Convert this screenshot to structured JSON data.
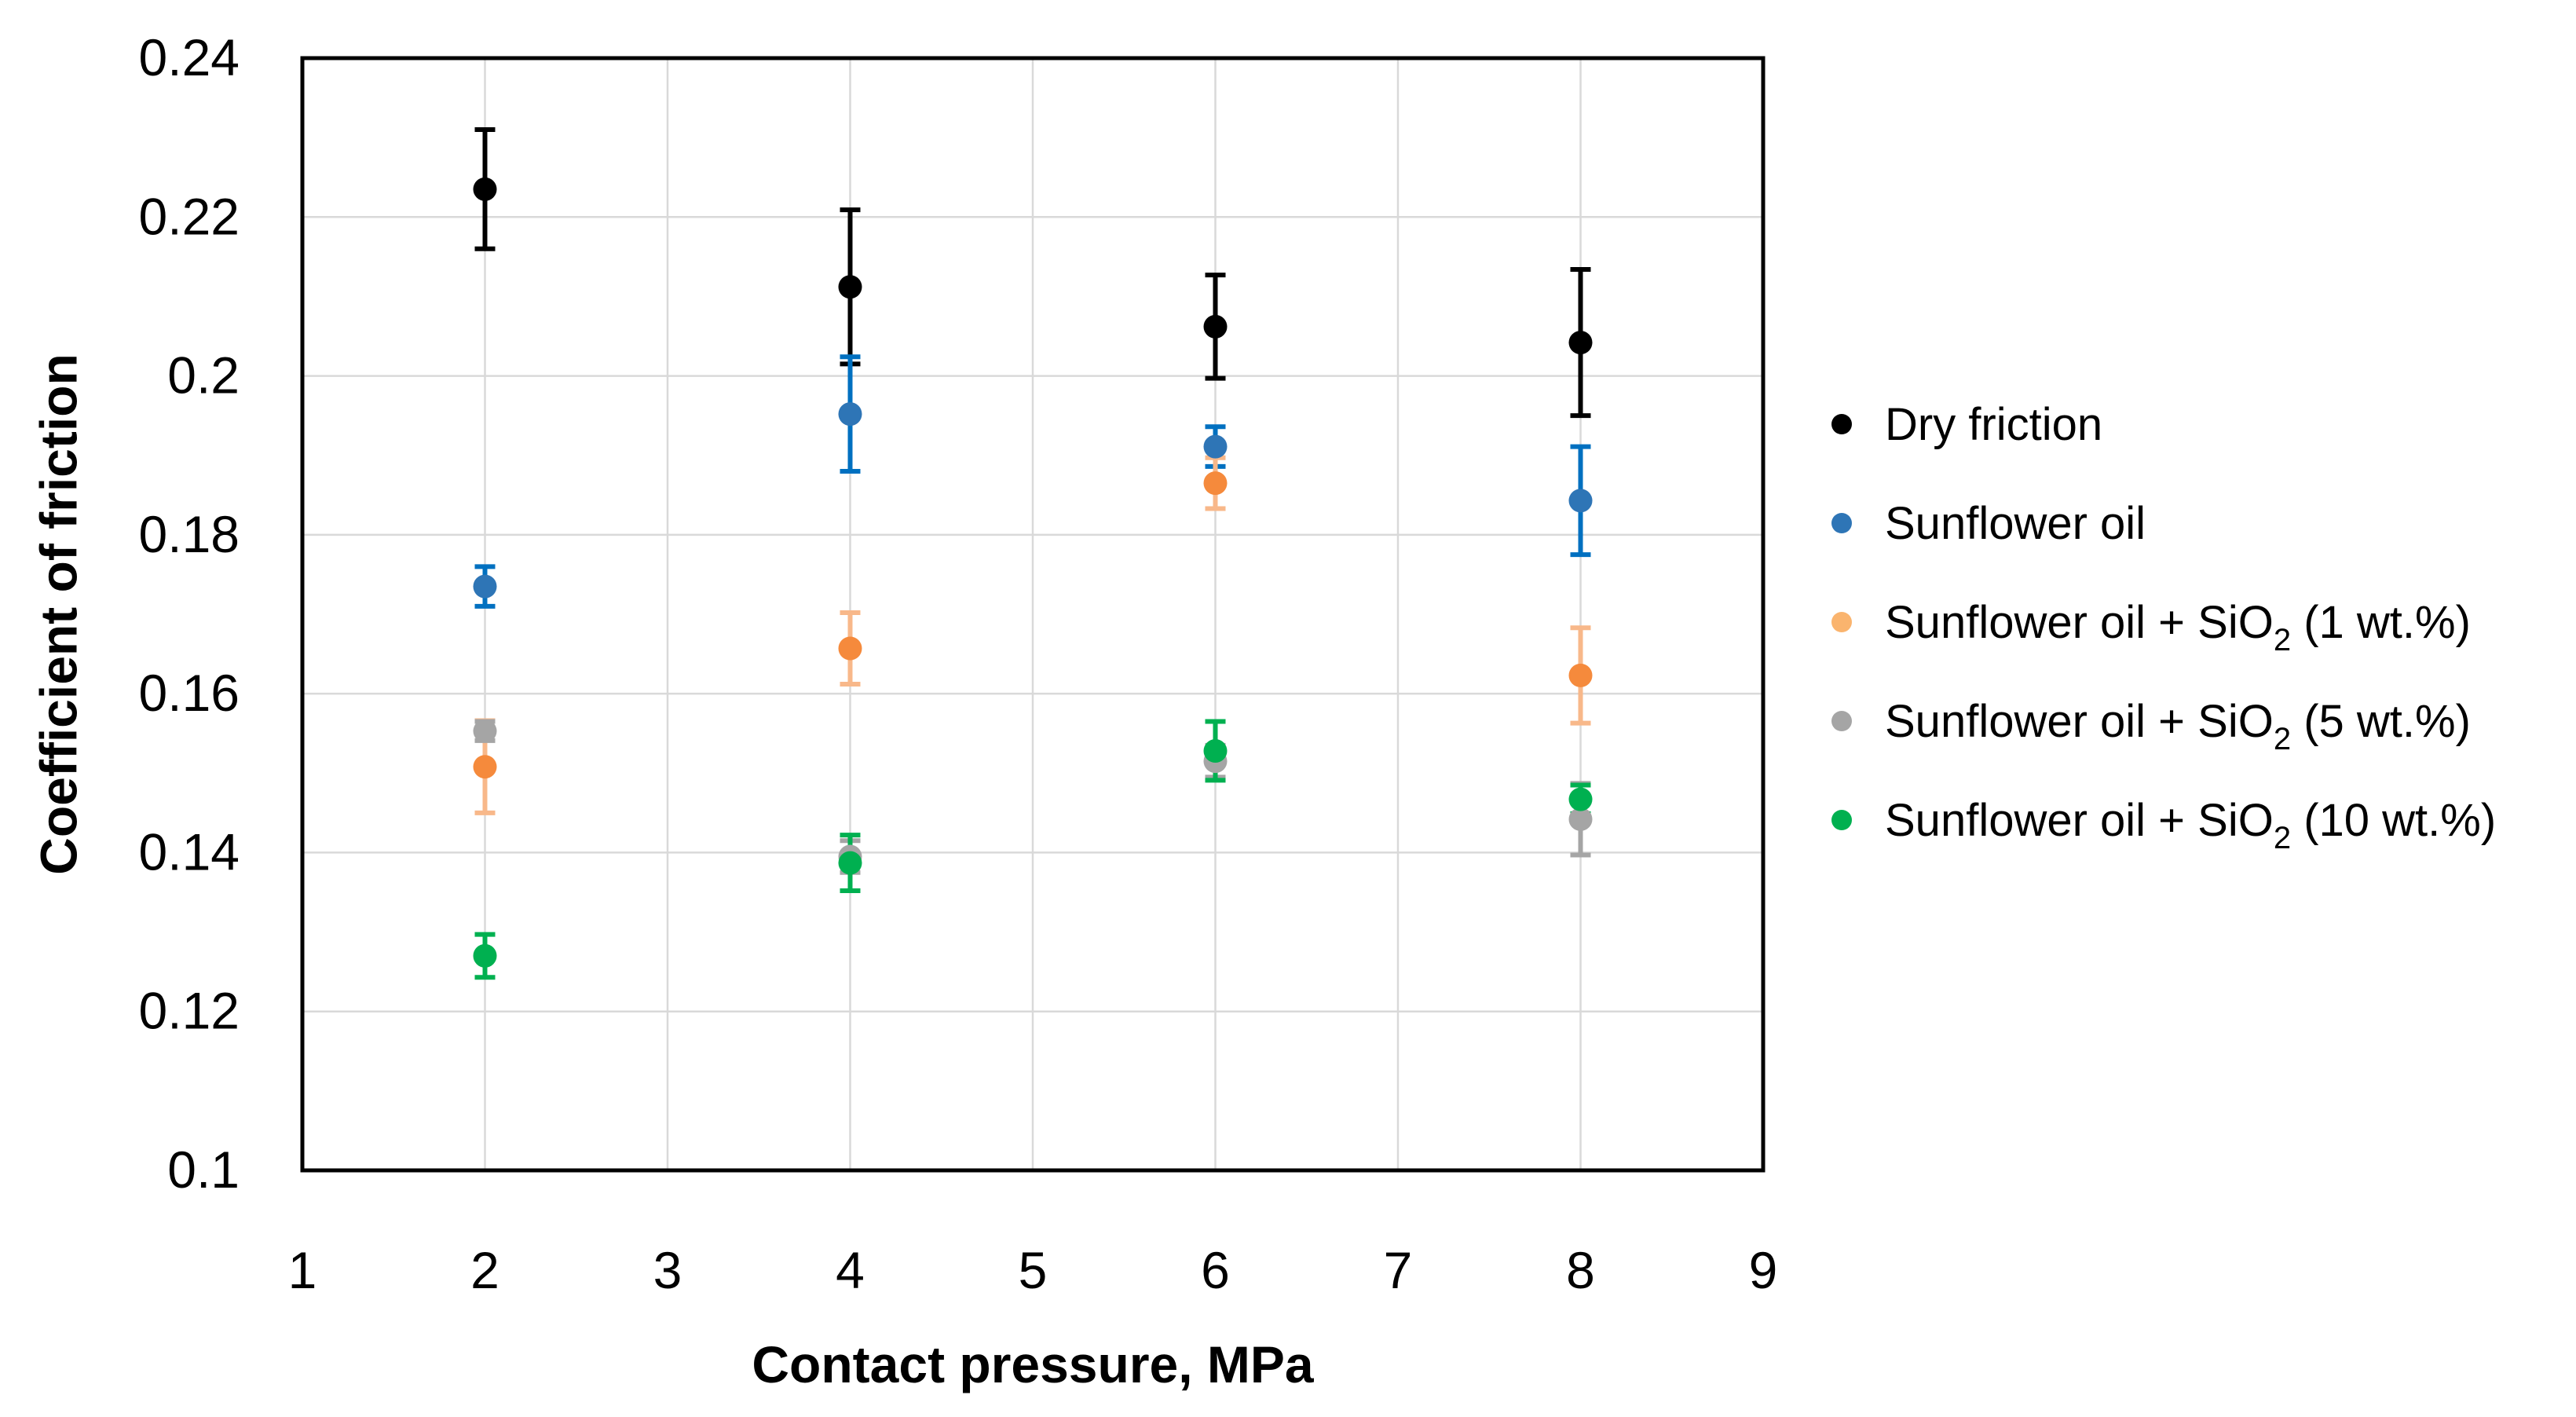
{
  "chart_data": {
    "type": "scatter",
    "title": "",
    "xlabel": "Contact pressure, MPa",
    "ylabel": "Coefficient of friction",
    "xlim": [
      1,
      9
    ],
    "ylim": [
      0.1,
      0.24
    ],
    "x_ticks": [
      "1",
      "2",
      "3",
      "4",
      "5",
      "6",
      "7",
      "8",
      "9"
    ],
    "y_ticks": [
      "0.1",
      "0.12",
      "0.14",
      "0.16",
      "0.18",
      "0.2",
      "0.22",
      "0.24"
    ],
    "grid": true,
    "error_bars": true,
    "legend_position": "right",
    "series": [
      {
        "name": "Dry friction",
        "label_main": "Dry friction",
        "label_sub": "",
        "label_tail": "",
        "color": "#000000",
        "err_color": "#000000",
        "points": [
          {
            "x": 2,
            "y": 0.2235,
            "err": 0.0075
          },
          {
            "x": 4,
            "y": 0.2112,
            "err": 0.0097
          },
          {
            "x": 6,
            "y": 0.2062,
            "err": 0.0065
          },
          {
            "x": 8,
            "y": 0.2042,
            "err": 0.0092
          }
        ]
      },
      {
        "name": "Sunflower oil",
        "label_main": "Sunflower oil",
        "label_sub": "",
        "label_tail": "",
        "color": "#2e75b6",
        "err_color": "#0070c0",
        "points": [
          {
            "x": 2,
            "y": 0.1735,
            "err": 0.0025
          },
          {
            "x": 4,
            "y": 0.1952,
            "err": 0.0072
          },
          {
            "x": 6,
            "y": 0.1911,
            "err": 0.0025
          },
          {
            "x": 8,
            "y": 0.1843,
            "err": 0.0068
          }
        ]
      },
      {
        "name": "Sunflower oil + SiO2 (1 wt.%)",
        "label_main": "Sunflower oil + SiO",
        "label_sub": "2",
        "label_tail": " (1 wt.%)",
        "color": "#f58a3c",
        "err_color": "#f8b88a",
        "legend_color": "#fab46e",
        "points": [
          {
            "x": 2,
            "y": 0.1508,
            "err": 0.0058
          },
          {
            "x": 4,
            "y": 0.1657,
            "err": 0.0045
          },
          {
            "x": 6,
            "y": 0.1865,
            "err": 0.0032
          },
          {
            "x": 8,
            "y": 0.1623,
            "err": 0.006
          }
        ]
      },
      {
        "name": "Sunflower oil + SiO2 (5 wt.%)",
        "label_main": "Sunflower oil + SiO",
        "label_sub": "2",
        "label_tail": " (5 wt.%)",
        "color": "#a5a5a5",
        "err_color": "#a5a5a5",
        "points": [
          {
            "x": 2,
            "y": 0.1553,
            "err": 0.0012
          },
          {
            "x": 4,
            "y": 0.1395,
            "err": 0.002
          },
          {
            "x": 6,
            "y": 0.1515,
            "err": 0.002
          },
          {
            "x": 8,
            "y": 0.1442,
            "err": 0.0045
          }
        ]
      },
      {
        "name": "Sunflower oil + SiO2 (10 wt.%)",
        "label_main": "Sunflower oil + SiO",
        "label_sub": "2",
        "label_tail": " (10 wt.%)",
        "color": "#00b050",
        "err_color": "#00b050",
        "points": [
          {
            "x": 2,
            "y": 0.127,
            "err": 0.0027
          },
          {
            "x": 4,
            "y": 0.1387,
            "err": 0.0035
          },
          {
            "x": 6,
            "y": 0.1528,
            "err": 0.0037
          },
          {
            "x": 8,
            "y": 0.1467,
            "err": 0.0018
          }
        ]
      }
    ]
  }
}
